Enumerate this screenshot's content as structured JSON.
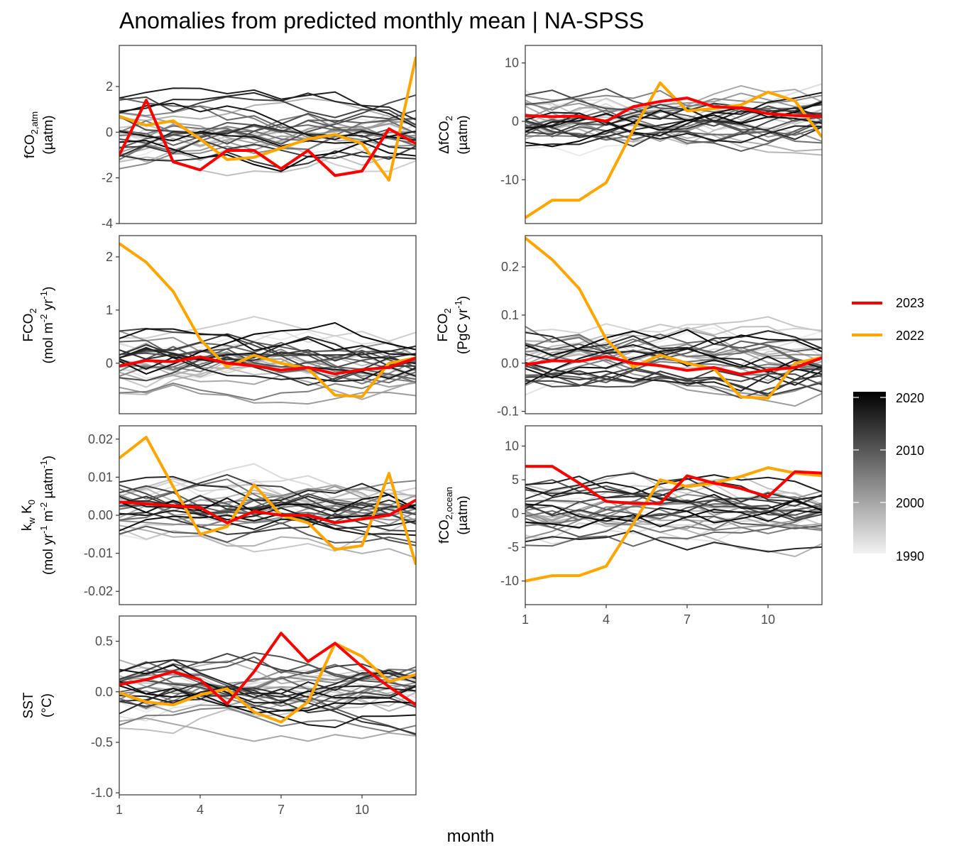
{
  "title": "Anomalies from predicted monthly mean | NA-SPSS",
  "xlabel": "month",
  "legend": {
    "highlight": [
      {
        "name": "2023",
        "color": "#ff0000"
      },
      {
        "name": "2022",
        "color": "#ffa500"
      }
    ],
    "gradient": {
      "ticks": [
        "2020",
        "2010",
        "2000",
        "1990"
      ],
      "low_color": "#f2f2f2",
      "high_color": "#000000"
    }
  },
  "chart_data": [
    {
      "type": "line",
      "id": "fco2atm",
      "ylabel": [
        "fCO2,atm",
        "(µatm)"
      ],
      "xlim": [
        1,
        12
      ],
      "ylim": [
        -4,
        3.8
      ],
      "xticks": [],
      "yticks": [
        2,
        0,
        -2,
        -4
      ],
      "series": [
        {
          "name": "2023",
          "values": [
            -1.0,
            1.4,
            -1.3,
            -1.65,
            -0.8,
            -0.8,
            -1.6,
            -0.8,
            -1.9,
            -1.7,
            0.15,
            -0.5
          ]
        },
        {
          "name": "2022",
          "values": [
            0.7,
            0.3,
            0.5,
            -0.3,
            -1.2,
            -1.1,
            -0.7,
            -0.3,
            -0.1,
            -0.5,
            -2.1,
            3.3
          ]
        }
      ]
    },
    {
      "type": "line",
      "id": "dfco2",
      "ylabel": [
        "ΔfCO2",
        "(µatm)"
      ],
      "xlim": [
        1,
        12
      ],
      "ylim": [
        -17.5,
        13
      ],
      "xticks": [],
      "yticks": [
        10,
        0,
        -10
      ],
      "series": [
        {
          "name": "2023",
          "values": [
            1.0,
            0.8,
            0.9,
            0.0,
            2.5,
            3.4,
            4.0,
            2.5,
            2.3,
            1.3,
            1.0,
            0.9
          ]
        },
        {
          "name": "2022",
          "values": [
            -16.5,
            -13.5,
            -13.5,
            -10.5,
            -1.5,
            6.6,
            1.8,
            2.2,
            2.8,
            5.0,
            3.5,
            -2.7
          ]
        }
      ]
    },
    {
      "type": "line",
      "id": "fco2_mol",
      "ylabel": [
        "FCO2",
        "(mol m-2 yr-1)"
      ],
      "xlim": [
        1,
        12
      ],
      "ylim": [
        -0.95,
        2.4
      ],
      "xticks": [],
      "yticks": [
        2,
        1,
        0
      ],
      "series": [
        {
          "name": "2023",
          "values": [
            -0.05,
            0.05,
            0.03,
            0.12,
            0.0,
            -0.05,
            -0.13,
            -0.08,
            -0.2,
            -0.12,
            -0.08,
            0.1
          ]
        },
        {
          "name": "2022",
          "values": [
            2.25,
            1.9,
            1.35,
            0.45,
            -0.07,
            0.15,
            0.0,
            -0.1,
            -0.6,
            -0.63,
            0.0,
            0.1
          ]
        }
      ]
    },
    {
      "type": "line",
      "id": "fco2_pgc",
      "ylabel": [
        "FCO2",
        "(PgC yr-1)"
      ],
      "xlim": [
        1,
        12
      ],
      "ylim": [
        -0.105,
        0.265
      ],
      "xticks": [],
      "yticks": [
        0.2,
        0.1,
        0.0,
        -0.1
      ],
      "series": [
        {
          "name": "2023",
          "values": [
            -0.003,
            0.005,
            0.004,
            0.014,
            0.0,
            -0.005,
            -0.015,
            -0.009,
            -0.023,
            -0.014,
            -0.009,
            0.011
          ]
        },
        {
          "name": "2022",
          "values": [
            0.26,
            0.215,
            0.155,
            0.05,
            -0.008,
            0.017,
            0.0,
            -0.012,
            -0.07,
            -0.073,
            0.0,
            0.012
          ]
        }
      ]
    },
    {
      "type": "line",
      "id": "kwk0",
      "ylabel": [
        "kw K0",
        "(mol yr-1 m-2 µatm-1)"
      ],
      "xlim": [
        1,
        12
      ],
      "ylim": [
        -0.0235,
        0.0235
      ],
      "xticks": [],
      "yticks": [
        0.02,
        0.01,
        0.0,
        -0.01,
        -0.02
      ],
      "series": [
        {
          "name": "2023",
          "values": [
            0.0035,
            0.003,
            0.0025,
            0.002,
            -0.002,
            0.001,
            0.0,
            0.0,
            -0.002,
            -0.001,
            0.0,
            0.004
          ]
        },
        {
          "name": "2022",
          "values": [
            0.015,
            0.0205,
            0.0075,
            -0.005,
            -0.003,
            0.008,
            0.0,
            -0.002,
            -0.009,
            -0.008,
            0.011,
            -0.013
          ]
        }
      ]
    },
    {
      "type": "line",
      "id": "fco2ocean",
      "ylabel": [
        "fCO2,ocean",
        "(µatm)"
      ],
      "xlim": [
        1,
        12
      ],
      "ylim": [
        -13.5,
        13
      ],
      "xticks": [
        1,
        4,
        7,
        10
      ],
      "yticks": [
        10,
        5,
        0,
        -5,
        -10
      ],
      "series": [
        {
          "name": "2023",
          "values": [
            7.0,
            7.0,
            4.5,
            1.8,
            1.5,
            1.5,
            5.6,
            4.5,
            3.7,
            2.5,
            6.2,
            6.0
          ]
        },
        {
          "name": "2022",
          "values": [
            -10.0,
            -9.2,
            -9.2,
            -7.8,
            -1.5,
            5.0,
            4.0,
            4.5,
            5.5,
            6.8,
            6.0,
            5.6
          ]
        }
      ]
    },
    {
      "type": "line",
      "id": "sst",
      "ylabel": [
        "SST",
        "(°C)"
      ],
      "xlim": [
        1,
        12
      ],
      "ylim": [
        -1.02,
        0.75
      ],
      "xticks": [
        1,
        4,
        7,
        10
      ],
      "yticks": [
        0.5,
        0.0,
        -0.5,
        -1.0
      ],
      "series": [
        {
          "name": "2023",
          "values": [
            0.07,
            0.12,
            0.2,
            0.12,
            -0.12,
            0.2,
            0.58,
            0.3,
            0.48,
            0.25,
            0.05,
            -0.13
          ]
        },
        {
          "name": "2022",
          "values": [
            -0.01,
            -0.1,
            -0.13,
            -0.03,
            0.03,
            -0.2,
            -0.3,
            -0.1,
            0.48,
            0.35,
            0.1,
            0.17
          ]
        }
      ]
    }
  ]
}
